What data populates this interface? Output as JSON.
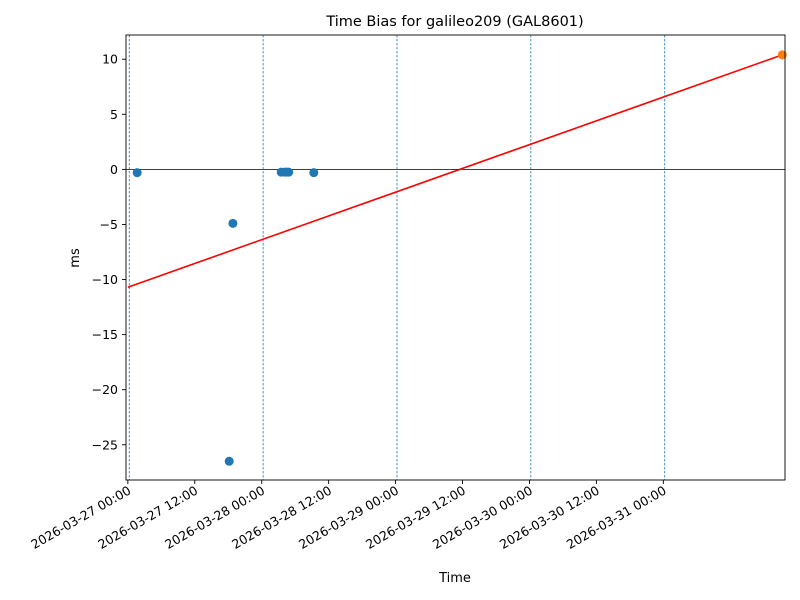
{
  "chart_data": {
    "type": "scatter",
    "title": "Time Bias for galileo209 (GAL8601)",
    "xlabel": "Time",
    "ylabel": "ms",
    "xlim": [
      "2026-03-26T23:40",
      "2026-03-31T21:49"
    ],
    "ylim": [
      -28.2,
      12.2
    ],
    "x_ticks": [
      {
        "value": "2026-03-27T00:00",
        "label": "2026-03-27 00:00"
      },
      {
        "value": "2026-03-27T12:00",
        "label": "2026-03-27 12:00"
      },
      {
        "value": "2026-03-28T00:00",
        "label": "2026-03-28 00:00"
      },
      {
        "value": "2026-03-28T12:00",
        "label": "2026-03-28 12:00"
      },
      {
        "value": "2026-03-29T00:00",
        "label": "2026-03-29 00:00"
      },
      {
        "value": "2026-03-29T12:00",
        "label": "2026-03-29 12:00"
      },
      {
        "value": "2026-03-30T00:00",
        "label": "2026-03-30 00:00"
      },
      {
        "value": "2026-03-30T12:00",
        "label": "2026-03-30 12:00"
      },
      {
        "value": "2026-03-31T00:00",
        "label": "2026-03-31 00:00"
      }
    ],
    "y_ticks": [
      {
        "value": 10,
        "label": "10"
      },
      {
        "value": 5,
        "label": "5"
      },
      {
        "value": 0,
        "label": "0"
      },
      {
        "value": -5,
        "label": "−5"
      },
      {
        "value": -10,
        "label": "−10"
      },
      {
        "value": -15,
        "label": "−15"
      },
      {
        "value": -20,
        "label": "−20"
      },
      {
        "value": -25,
        "label": "−25"
      }
    ],
    "vlines": [
      "2026-03-27T00:15",
      "2026-03-28T00:15",
      "2026-03-29T00:15",
      "2026-03-30T00:15",
      "2026-03-31T00:15"
    ],
    "hline": 0,
    "series": [
      {
        "type": "scatter",
        "color": "#1f77b4",
        "points": [
          {
            "x": "2026-03-27T01:40",
            "y": -0.3
          },
          {
            "x": "2026-03-27T18:10",
            "y": -26.5
          },
          {
            "x": "2026-03-27T18:50",
            "y": -4.9
          },
          {
            "x": "2026-03-28T03:30",
            "y": -0.25
          },
          {
            "x": "2026-03-28T04:10",
            "y": -0.25
          },
          {
            "x": "2026-03-28T04:30",
            "y": -0.25
          },
          {
            "x": "2026-03-28T04:50",
            "y": -0.25
          },
          {
            "x": "2026-03-28T09:20",
            "y": -0.3
          }
        ]
      },
      {
        "type": "scatter",
        "color": "#ff7f0e",
        "points": [
          {
            "x": "2026-03-31T21:20",
            "y": 10.4
          }
        ]
      },
      {
        "type": "line",
        "color": "#ff0000",
        "points": [
          {
            "x": "2026-03-27T00:00",
            "y": -10.7
          },
          {
            "x": "2026-03-31T21:20",
            "y": 10.4
          }
        ]
      }
    ],
    "grid": false,
    "legend": "none"
  }
}
